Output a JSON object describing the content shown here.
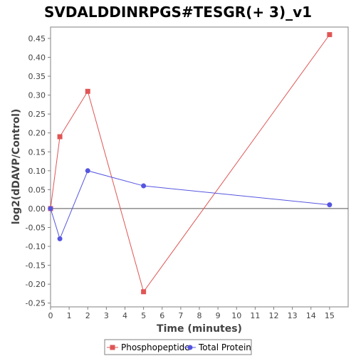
{
  "chart_data": {
    "type": "line",
    "title": "SVDALDDINRPGS#TESGR(+ 3)_v1",
    "xlabel": "Time (minutes)",
    "ylabel": "log2(dDAVP/Control)",
    "xlim": [
      0,
      16
    ],
    "ylim": [
      -0.26,
      0.48
    ],
    "xticks": [
      0,
      1,
      2,
      3,
      4,
      5,
      6,
      7,
      8,
      9,
      10,
      11,
      12,
      13,
      14,
      15
    ],
    "yticks": [
      -0.25,
      -0.2,
      -0.15,
      -0.1,
      -0.05,
      0.0,
      0.05,
      0.1,
      0.15,
      0.2,
      0.25,
      0.3,
      0.35,
      0.4,
      0.45
    ],
    "ytick_labels": [
      "-0.25",
      "-0.20",
      "-0.15",
      "-0.10",
      "-0.05",
      "0.00",
      "0.05",
      "0.10",
      "0.15",
      "0.20",
      "0.25",
      "0.30",
      "0.35",
      "0.40",
      "0.45"
    ],
    "grid": false,
    "legend_position": "bottom-center",
    "series": [
      {
        "name": "Phosphopeptide",
        "color": "#e05555",
        "marker": "square",
        "x": [
          0,
          0.5,
          2,
          5,
          15
        ],
        "y": [
          0.0,
          0.19,
          0.31,
          -0.22,
          0.46
        ]
      },
      {
        "name": "Total Protein",
        "color": "#5555e0",
        "marker": "circle",
        "x": [
          0,
          0.5,
          2,
          5,
          15
        ],
        "y": [
          0.0,
          -0.08,
          0.1,
          0.06,
          0.01
        ]
      }
    ]
  }
}
